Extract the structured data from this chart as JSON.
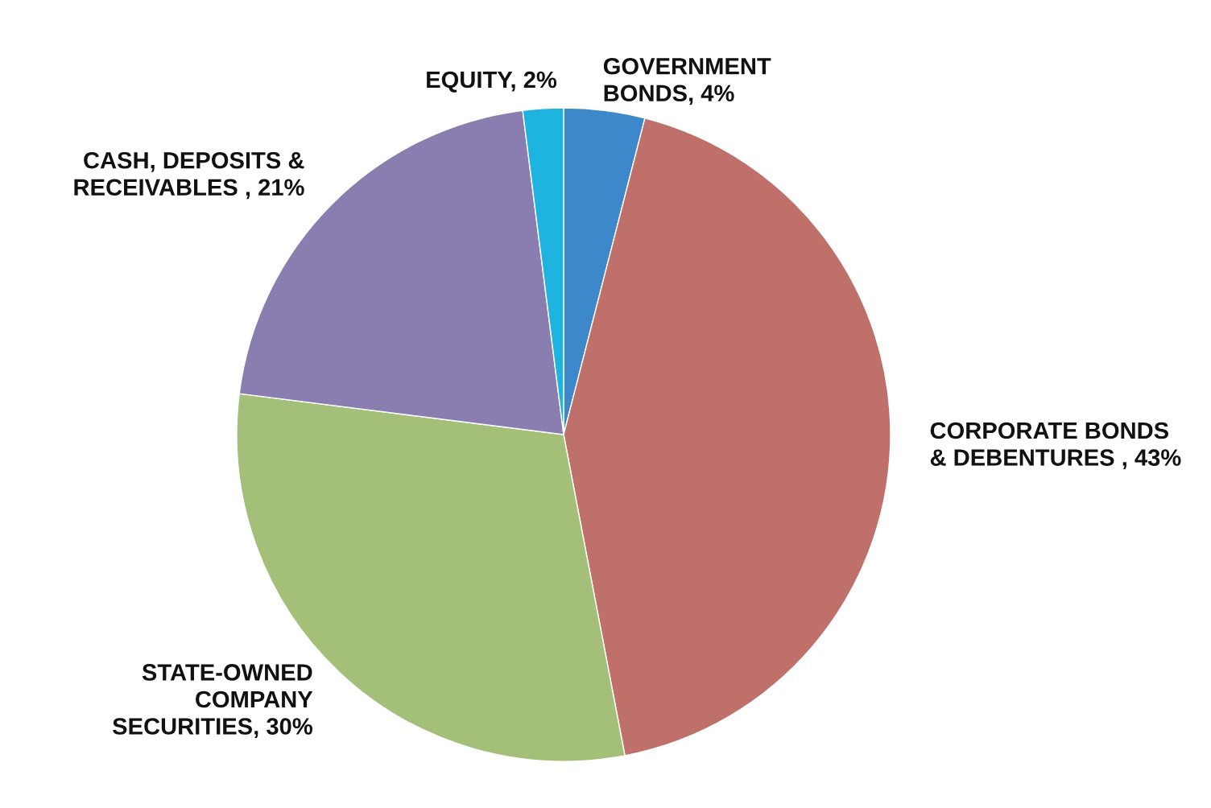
{
  "chart_data": {
    "type": "pie",
    "categories": [
      "GOVERNMENT\nBONDS",
      "CORPORATE BONDS\n& DEBENTURES ",
      "STATE-OWNED\nCOMPANY\nSECURITIES",
      "CASH, DEPOSITS &\nRECEIVABLES ",
      "EQUITY"
    ],
    "values": [
      4,
      43,
      30,
      21,
      2
    ],
    "value_labels": [
      "4%",
      "43%",
      "30%",
      "21%",
      "2%"
    ],
    "colors": [
      "#3d87cb",
      "#c0706a",
      "#a3bf78",
      "#8a7db0",
      "#1fb3df"
    ]
  }
}
